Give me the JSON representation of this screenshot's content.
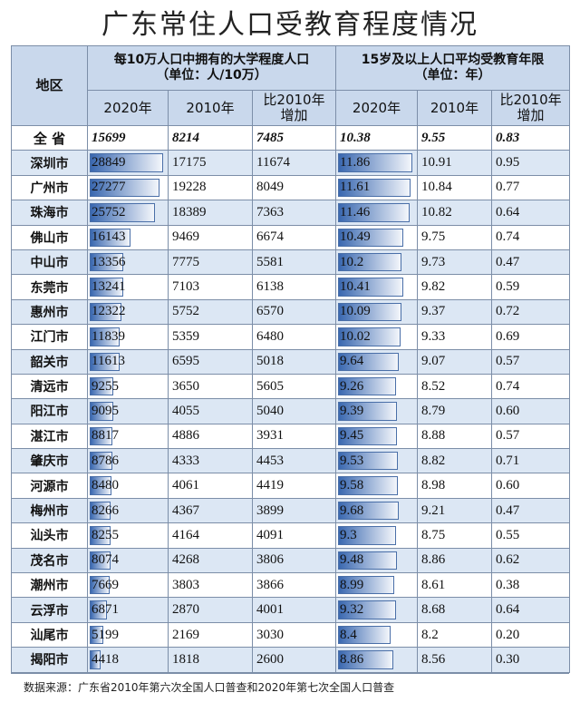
{
  "title": "广东常住人口受教育程度情况",
  "table": {
    "region_header": "地区",
    "groups": [
      {
        "title": "每10万人口中拥有的大学程度人口",
        "unit": "（单位：人/10万）"
      },
      {
        "title": "15岁及以上人口平均受教育年限",
        "unit": "（单位：年）"
      }
    ],
    "columns": [
      [
        "2020年"
      ],
      [
        "2010年"
      ],
      [
        "比2010年",
        "增加"
      ],
      [
        "2020年"
      ],
      [
        "2010年"
      ],
      [
        "比2010年",
        "增加"
      ]
    ],
    "rows": [
      [
        "全 省",
        "15699",
        "8214",
        "7485",
        "10.38",
        "9.55",
        "0.83"
      ],
      [
        "深圳市",
        "28849",
        "17175",
        "11674",
        "11.86",
        "10.91",
        "0.95"
      ],
      [
        "广州市",
        "27277",
        "19228",
        "8049",
        "11.61",
        "10.84",
        "0.77"
      ],
      [
        "珠海市",
        "25752",
        "18389",
        "7363",
        "11.46",
        "10.82",
        "0.64"
      ],
      [
        "佛山市",
        "16143",
        "9469",
        "6674",
        "10.49",
        "9.75",
        "0.74"
      ],
      [
        "中山市",
        "13356",
        "7775",
        "5581",
        "10.2",
        "9.73",
        "0.47"
      ],
      [
        "东莞市",
        "13241",
        "7103",
        "6138",
        "10.41",
        "9.82",
        "0.59"
      ],
      [
        "惠州市",
        "12322",
        "5752",
        "6570",
        "10.09",
        "9.37",
        "0.72"
      ],
      [
        "江门市",
        "11839",
        "5359",
        "6480",
        "10.02",
        "9.33",
        "0.69"
      ],
      [
        "韶关市",
        "11613",
        "6595",
        "5018",
        "9.64",
        "9.07",
        "0.57"
      ],
      [
        "清远市",
        "9255",
        "3650",
        "5605",
        "9.26",
        "8.52",
        "0.74"
      ],
      [
        "阳江市",
        "9095",
        "4055",
        "5040",
        "9.39",
        "8.79",
        "0.60"
      ],
      [
        "湛江市",
        "8817",
        "4886",
        "3931",
        "9.45",
        "8.88",
        "0.57"
      ],
      [
        "肇庆市",
        "8786",
        "4333",
        "4453",
        "9.53",
        "8.82",
        "0.71"
      ],
      [
        "河源市",
        "8480",
        "4061",
        "4419",
        "9.58",
        "8.98",
        "0.60"
      ],
      [
        "梅州市",
        "8266",
        "4367",
        "3899",
        "9.68",
        "9.21",
        "0.47"
      ],
      [
        "汕头市",
        "8255",
        "4164",
        "4091",
        "9.3",
        "8.75",
        "0.55"
      ],
      [
        "茂名市",
        "8074",
        "4268",
        "3806",
        "9.48",
        "8.86",
        "0.62"
      ],
      [
        "潮州市",
        "7669",
        "3803",
        "3866",
        "8.99",
        "8.61",
        "0.38"
      ],
      [
        "云浮市",
        "6871",
        "2870",
        "4001",
        "9.32",
        "8.68",
        "0.64"
      ],
      [
        "汕尾市",
        "5199",
        "2169",
        "3030",
        "8.4",
        "8.2",
        "0.20"
      ],
      [
        "揭阳市",
        "4418",
        "1818",
        "2600",
        "8.86",
        "8.56",
        "0.30"
      ]
    ]
  },
  "source": "数据来源：广东省2010年第六次全国人口普查和2020年第七次全国人口普查"
}
